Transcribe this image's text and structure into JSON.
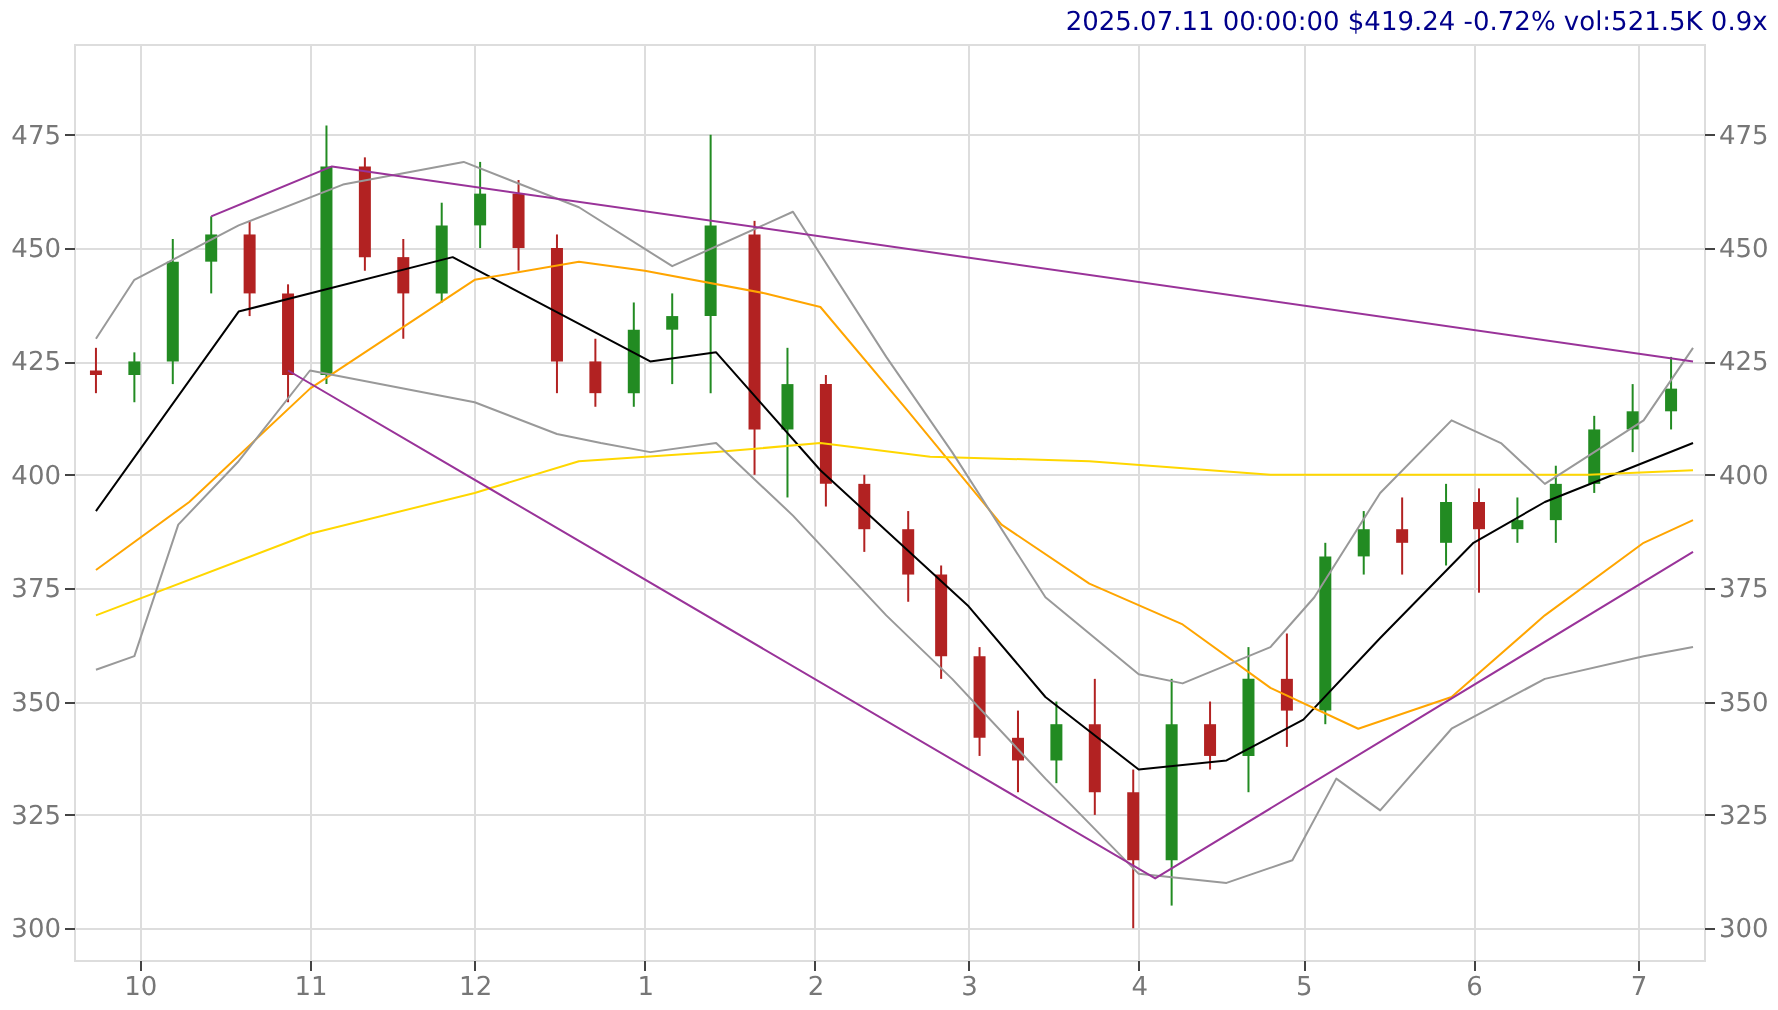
{
  "chart_data": {
    "type": "candlestick",
    "title": "2025.07.11 00:00:00 $419.24 -0.72% vol:521.5K 0.9x",
    "x": [
      "2024-09-23",
      "2024-09-30",
      "2024-10-07",
      "2024-10-14",
      "2024-10-21",
      "2024-10-28",
      "2024-11-04",
      "2024-11-11",
      "2024-11-18",
      "2024-11-25",
      "2024-12-02",
      "2024-12-09",
      "2024-12-16",
      "2024-12-23",
      "2024-12-30",
      "2025-01-06",
      "2025-01-13",
      "2025-01-21",
      "2025-01-27",
      "2025-02-03",
      "2025-02-10",
      "2025-02-18",
      "2025-02-24",
      "2025-03-03",
      "2025-03-10",
      "2025-03-17",
      "2025-03-24",
      "2025-03-31",
      "2025-04-07",
      "2025-04-14",
      "2025-04-21",
      "2025-04-28",
      "2025-05-05",
      "2025-05-12",
      "2025-05-19",
      "2025-05-27",
      "2025-06-02",
      "2025-06-09",
      "2025-06-16",
      "2025-06-23",
      "2025-06-30",
      "2025-07-07"
    ],
    "ohlc": [
      [
        423,
        428,
        418,
        422
      ],
      [
        422,
        427,
        416,
        425
      ],
      [
        425,
        452,
        420,
        447
      ],
      [
        447,
        457,
        440,
        453
      ],
      [
        453,
        456,
        435,
        440
      ],
      [
        440,
        442,
        416,
        422
      ],
      [
        422,
        477,
        420,
        468
      ],
      [
        468,
        470,
        445,
        448
      ],
      [
        448,
        452,
        430,
        440
      ],
      [
        440,
        460,
        438,
        455
      ],
      [
        455,
        469,
        450,
        462
      ],
      [
        462,
        465,
        445,
        450
      ],
      [
        450,
        453,
        418,
        425
      ],
      [
        425,
        430,
        415,
        418
      ],
      [
        418,
        438,
        415,
        432
      ],
      [
        432,
        440,
        420,
        435
      ],
      [
        435,
        475,
        418,
        455
      ],
      [
        453,
        456,
        400,
        410
      ],
      [
        410,
        428,
        395,
        420
      ],
      [
        420,
        422,
        393,
        398
      ],
      [
        398,
        400,
        383,
        388
      ],
      [
        388,
        392,
        372,
        378
      ],
      [
        378,
        380,
        355,
        360
      ],
      [
        360,
        362,
        338,
        342
      ],
      [
        342,
        348,
        330,
        337
      ],
      [
        337,
        350,
        332,
        345
      ],
      [
        345,
        355,
        325,
        330
      ],
      [
        330,
        335,
        300,
        315
      ],
      [
        315,
        355,
        305,
        345
      ],
      [
        345,
        350,
        335,
        338
      ],
      [
        338,
        362,
        330,
        355
      ],
      [
        355,
        365,
        340,
        348
      ],
      [
        348,
        385,
        345,
        382
      ],
      [
        382,
        392,
        378,
        388
      ],
      [
        388,
        395,
        378,
        385
      ],
      [
        385,
        398,
        380,
        394
      ],
      [
        394,
        397,
        374,
        388
      ],
      [
        388,
        395,
        385,
        390
      ],
      [
        390,
        402,
        385,
        398
      ],
      [
        398,
        413,
        396,
        410
      ],
      [
        410,
        420,
        405,
        414
      ],
      [
        414,
        426,
        410,
        419
      ]
    ],
    "series": [
      {
        "type": "line",
        "color": "#000000",
        "x": [
          "2024-09-23",
          "2024-10-19",
          "2024-11-27",
          "2025-01-02",
          "2025-01-14",
          "2025-02-02",
          "2025-03-01",
          "2025-03-15",
          "2025-04-01",
          "2025-04-17",
          "2025-05-01",
          "2025-05-15",
          "2025-06-01",
          "2025-06-14",
          "2025-07-11"
        ],
        "values": [
          392,
          436,
          448,
          425,
          427,
          401,
          371,
          351,
          335,
          337,
          346,
          364,
          385,
          394,
          407
        ]
      },
      {
        "type": "line",
        "color": "#ffa500",
        "x": [
          "2024-09-23",
          "2024-10-10",
          "2024-11-01",
          "2024-12-01",
          "2024-12-20",
          "2025-01-01",
          "2025-01-23",
          "2025-02-02",
          "2025-02-18",
          "2025-03-07",
          "2025-03-23",
          "2025-04-09",
          "2025-04-25",
          "2025-05-11",
          "2025-05-28",
          "2025-06-14",
          "2025-07-02",
          "2025-07-11"
        ],
        "values": [
          379,
          394,
          419,
          443,
          447,
          445,
          440,
          437,
          414,
          389,
          376,
          367,
          353,
          344,
          351,
          369,
          385,
          390
        ]
      },
      {
        "type": "line",
        "color": "#ffd700",
        "x": [
          "2024-09-23",
          "2024-11-01",
          "2024-12-01",
          "2024-12-20",
          "2025-01-14",
          "2025-02-02",
          "2025-02-22",
          "2025-03-23",
          "2025-04-25",
          "2025-06-01",
          "2025-06-22",
          "2025-07-11"
        ],
        "values": [
          369,
          387,
          396,
          403,
          405,
          407,
          404,
          403,
          400,
          400,
          400,
          401
        ]
      },
      {
        "type": "line",
        "color": "#999999",
        "x": [
          "2024-09-23",
          "2024-09-30",
          "2024-10-19",
          "2024-11-07",
          "2024-11-29",
          "2024-12-20",
          "2025-01-06",
          "2025-01-28",
          "2025-02-14",
          "2025-02-26",
          "2025-03-15",
          "2025-04-01",
          "2025-04-09",
          "2025-04-25",
          "2025-05-03",
          "2025-05-15",
          "2025-05-28",
          "2025-06-06",
          "2025-06-14",
          "2025-07-02",
          "2025-07-11"
        ],
        "values": [
          430,
          443,
          455,
          464,
          469,
          459,
          446,
          458,
          426,
          405,
          373,
          356,
          354,
          362,
          373,
          396,
          412,
          407,
          398,
          412,
          428
        ]
      },
      {
        "type": "line",
        "color": "#999999",
        "x": [
          "2024-09-23",
          "2024-09-30",
          "2024-10-08",
          "2024-10-19",
          "2024-11-01",
          "2024-12-01",
          "2024-12-16",
          "2024-12-24",
          "2025-01-02",
          "2025-01-14",
          "2025-01-28",
          "2025-02-14",
          "2025-02-26",
          "2025-03-15",
          "2025-04-01",
          "2025-04-17",
          "2025-04-29",
          "2025-05-07",
          "2025-05-15",
          "2025-05-28",
          "2025-06-14",
          "2025-07-02",
          "2025-07-11"
        ],
        "values": [
          357,
          360,
          389,
          403,
          423,
          416,
          409,
          407,
          405,
          407,
          391,
          369,
          355,
          333,
          312,
          310,
          315,
          333,
          326,
          344,
          355,
          360,
          362
        ]
      },
      {
        "type": "line",
        "color": "#993399",
        "x": [
          "2024-10-14",
          "2024-11-05",
          "2025-07-11"
        ],
        "values": [
          457,
          468,
          425
        ]
      },
      {
        "type": "line",
        "color": "#993399",
        "x": [
          "2024-10-28",
          "2025-04-04",
          "2025-07-11"
        ],
        "values": [
          423,
          311,
          383
        ]
      }
    ],
    "xlim": [
      "2024-09-19",
      "2025-07-13"
    ],
    "xticks": [
      {
        "value": "2024-10-01",
        "label": "10"
      },
      {
        "value": "2024-11-01",
        "label": "11"
      },
      {
        "value": "2024-12-01",
        "label": "12"
      },
      {
        "value": "2025-01-01",
        "label": "1"
      },
      {
        "value": "2025-02-01",
        "label": "2"
      },
      {
        "value": "2025-03-01",
        "label": "3"
      },
      {
        "value": "2025-04-01",
        "label": "4"
      },
      {
        "value": "2025-05-01",
        "label": "5"
      },
      {
        "value": "2025-06-01",
        "label": "6"
      },
      {
        "value": "2025-07-01",
        "label": "7"
      }
    ],
    "ylim": [
      293,
      495
    ],
    "yticks": [
      300,
      325,
      350,
      375,
      400,
      425,
      450,
      475
    ],
    "y2lim": [
      293,
      495
    ],
    "y2ticks": [
      300,
      325,
      350,
      375,
      400,
      425,
      450,
      475
    ],
    "grid": true
  }
}
